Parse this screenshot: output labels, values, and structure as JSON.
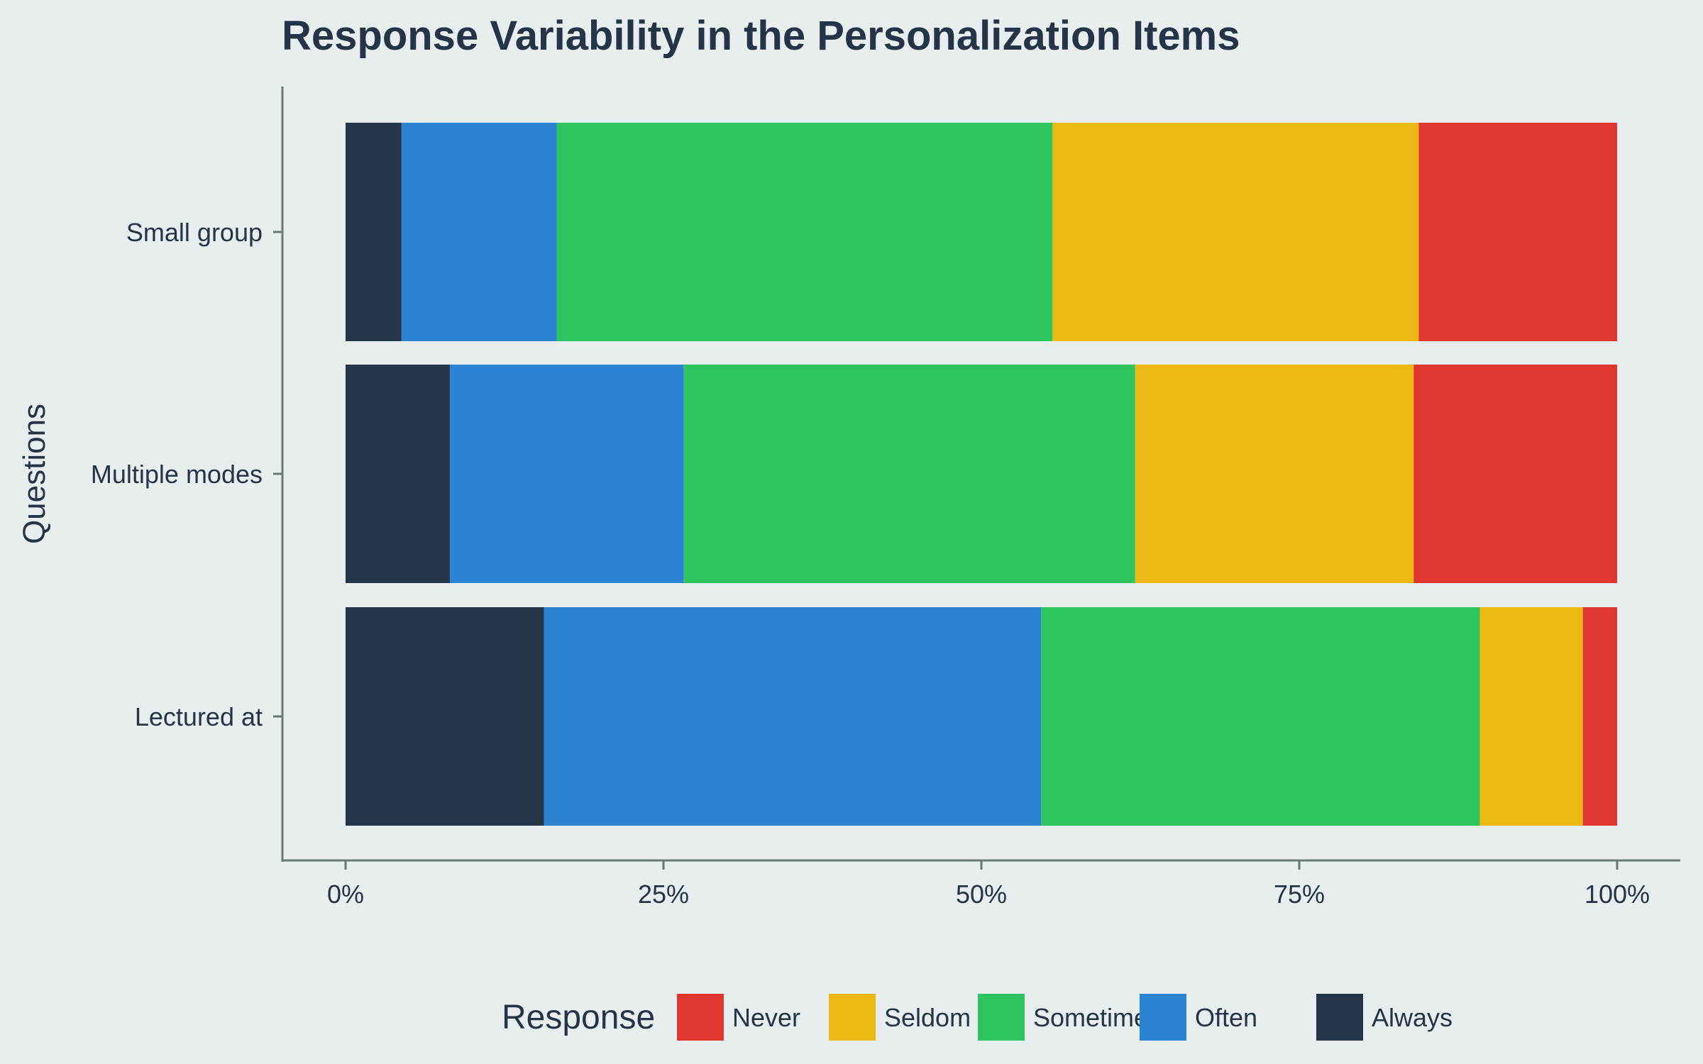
{
  "chart_data": {
    "type": "bar",
    "orientation": "horizontal",
    "stacked": true,
    "title": "Response Variability in the Personalization Items",
    "xlabel": "",
    "ylabel": "Questions",
    "xlim": [
      0,
      100
    ],
    "x_ticks": [
      0,
      25,
      50,
      75,
      100
    ],
    "x_tick_labels": [
      "0%",
      "25%",
      "50%",
      "75%",
      "100%"
    ],
    "categories": [
      "Small group",
      "Multiple modes",
      "Lectured at"
    ],
    "series": [
      {
        "name": "Always",
        "color": "#253649",
        "values": [
          4.4,
          8.2,
          15.6
        ]
      },
      {
        "name": "Often",
        "color": "#2b83d2",
        "values": [
          12.2,
          18.4,
          39.1
        ]
      },
      {
        "name": "Sometimes",
        "color": "#2ec560",
        "values": [
          39.0,
          35.5,
          34.5
        ]
      },
      {
        "name": "Seldom",
        "color": "#ebb814",
        "values": [
          28.8,
          21.9,
          8.1
        ]
      },
      {
        "name": "Never",
        "color": "#e0362f",
        "values": [
          15.6,
          16.0,
          2.7
        ]
      }
    ],
    "legend": {
      "title": "Response",
      "position": "bottom",
      "order": [
        "Never",
        "Seldom",
        "Sometimes",
        "Often",
        "Always"
      ]
    },
    "grid": false
  },
  "colors": {
    "background": "#e8eeee",
    "axis": "#6b7878",
    "text": "#253446"
  }
}
